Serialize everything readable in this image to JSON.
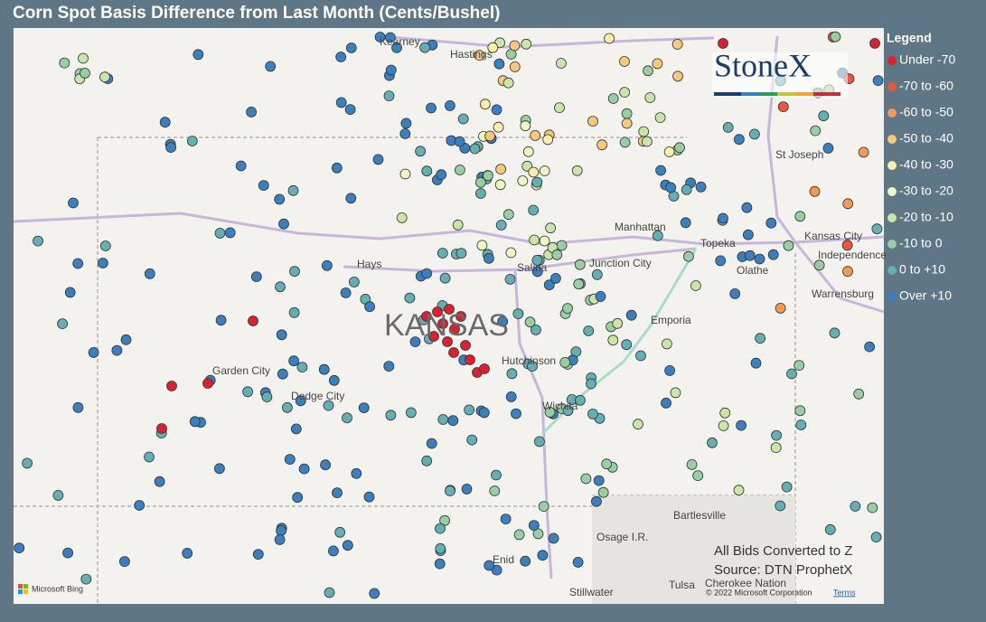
{
  "title": "Corn Spot Basis Difference from Last Month (Cents/Bushel)",
  "legend": {
    "title": "Legend",
    "items": [
      {
        "label": "Under -70",
        "color": "#d7222f"
      },
      {
        "label": "-70 to -60",
        "color": "#e8593b"
      },
      {
        "label": "-60 to -50",
        "color": "#f39a5a"
      },
      {
        "label": "-50 to -40",
        "color": "#f8c87e"
      },
      {
        "label": "-40 to -30",
        "color": "#fbedaa"
      },
      {
        "label": "-30 to -20",
        "color": "#eef6c2"
      },
      {
        "label": "-20 to -10",
        "color": "#c9e6a8"
      },
      {
        "label": "-10 to 0",
        "color": "#98cfa2"
      },
      {
        "label": "0 to +10",
        "color": "#64aeb5"
      },
      {
        "label": "Over +10",
        "color": "#3a7fbf"
      }
    ]
  },
  "map_labels": [
    "Kearney",
    "Hastings",
    "Hays",
    "Salina",
    "Manhattan",
    "Junction City",
    "Topeka",
    "Kansas City",
    "Independence",
    "Olathe",
    "St Joseph",
    "Emporia",
    "Warrensburg",
    "Hutchinson",
    "Wichita",
    "Garden City",
    "Dodge City",
    "KANSAS",
    "Bartlesville",
    "Osage I.R.",
    "Enid",
    "Stillwater",
    "Tulsa",
    "Cherokee Nation"
  ],
  "notes": [
    "All Bids Converted to Z",
    "Source: DTN ProphetX"
  ],
  "logo": "StoneX",
  "provider": "Microsoft Bing",
  "attribution": "© 2022 Microsoft Corporation",
  "terms": "Terms"
}
